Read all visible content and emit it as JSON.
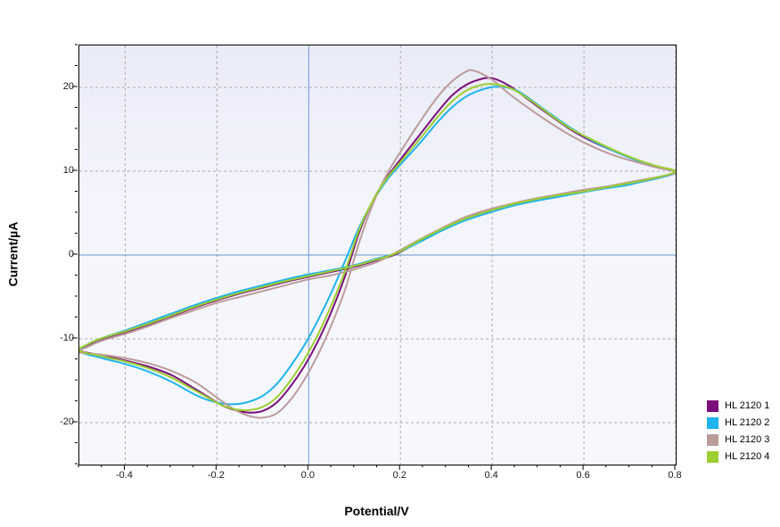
{
  "axes": {
    "x_label": "Potential/V",
    "y_label": "Current/µA"
  },
  "legend": {
    "items": [
      {
        "label": "HL 2120 1",
        "color": "#7b0f7b"
      },
      {
        "label": "HL 2120 2",
        "color": "#1fb4ee"
      },
      {
        "label": "HL 2120 3",
        "color": "#bc9b9b"
      },
      {
        "label": "HL 2120 4",
        "color": "#9cce30"
      }
    ]
  },
  "chart_data": {
    "type": "line",
    "subtype": "cyclic-voltammogram",
    "title": "",
    "xlabel": "Potential/V",
    "ylabel": "Current/µA",
    "xlim": [
      -0.5,
      0.8
    ],
    "ylim": [
      -25,
      25
    ],
    "x_ticks": [
      {
        "v": -0.4,
        "label": "-0.4"
      },
      {
        "v": -0.2,
        "label": "-0.2"
      },
      {
        "v": 0.0,
        "label": "0.0"
      },
      {
        "v": 0.2,
        "label": "0.2"
      },
      {
        "v": 0.4,
        "label": "0.4"
      },
      {
        "v": 0.6,
        "label": "0.6"
      },
      {
        "v": 0.8,
        "label": "0.8"
      }
    ],
    "x_minor_step": 0.05,
    "y_ticks": [
      {
        "v": -20,
        "label": "-20"
      },
      {
        "v": -10,
        "label": "-10"
      },
      {
        "v": 0,
        "label": "0"
      },
      {
        "v": 10,
        "label": "10"
      },
      {
        "v": 20,
        "label": "20"
      }
    ],
    "y_minor_step": 2.5,
    "grid_color": "#ababab",
    "zero_line_color": "#6b97d6",
    "legend_position": "right-bottom",
    "series": [
      {
        "name": "HL 2120 1",
        "color": "#7b0f7b",
        "anodic_peak": {
          "x": 0.39,
          "y": 21.1
        },
        "cathodic_peak": {
          "x": -0.13,
          "y": -18.8
        },
        "points": [
          [
            -0.5,
            -11.4
          ],
          [
            -0.45,
            -12.0
          ],
          [
            -0.4,
            -12.6
          ],
          [
            -0.35,
            -13.3
          ],
          [
            -0.3,
            -14.3
          ],
          [
            -0.25,
            -15.9
          ],
          [
            -0.22,
            -16.9
          ],
          [
            -0.19,
            -17.9
          ],
          [
            -0.16,
            -18.5
          ],
          [
            -0.13,
            -18.8
          ],
          [
            -0.1,
            -18.6
          ],
          [
            -0.07,
            -17.6
          ],
          [
            -0.04,
            -15.7
          ],
          [
            -0.01,
            -13.3
          ],
          [
            0.02,
            -10.3
          ],
          [
            0.05,
            -6.7
          ],
          [
            0.08,
            -2.4
          ],
          [
            0.11,
            2.7
          ],
          [
            0.14,
            6.5
          ],
          [
            0.17,
            9.2
          ],
          [
            0.2,
            11.4
          ],
          [
            0.24,
            14.2
          ],
          [
            0.28,
            17.0
          ],
          [
            0.31,
            18.9
          ],
          [
            0.34,
            20.2
          ],
          [
            0.37,
            20.9
          ],
          [
            0.4,
            21.1
          ],
          [
            0.44,
            20.1
          ],
          [
            0.48,
            18.5
          ],
          [
            0.52,
            16.9
          ],
          [
            0.57,
            15.0
          ],
          [
            0.62,
            13.5
          ],
          [
            0.67,
            12.3
          ],
          [
            0.72,
            11.2
          ],
          [
            0.76,
            10.5
          ],
          [
            0.8,
            9.9
          ],
          [
            0.77,
            9.3
          ],
          [
            0.73,
            8.8
          ],
          [
            0.69,
            8.4
          ],
          [
            0.64,
            7.9
          ],
          [
            0.59,
            7.5
          ],
          [
            0.54,
            7.0
          ],
          [
            0.49,
            6.5
          ],
          [
            0.44,
            5.9
          ],
          [
            0.39,
            5.2
          ],
          [
            0.34,
            4.3
          ],
          [
            0.29,
            3.0
          ],
          [
            0.24,
            1.6
          ],
          [
            0.19,
            0.1
          ],
          [
            0.15,
            -0.6
          ],
          [
            0.1,
            -1.4
          ],
          [
            0.05,
            -2.0
          ],
          [
            0.0,
            -2.6
          ],
          [
            -0.05,
            -3.2
          ],
          [
            -0.1,
            -3.9
          ],
          [
            -0.15,
            -4.6
          ],
          [
            -0.2,
            -5.4
          ],
          [
            -0.25,
            -6.3
          ],
          [
            -0.3,
            -7.3
          ],
          [
            -0.35,
            -8.3
          ],
          [
            -0.4,
            -9.2
          ],
          [
            -0.45,
            -10.0
          ],
          [
            -0.48,
            -10.7
          ]
        ]
      },
      {
        "name": "HL 2120 2",
        "color": "#1fb4ee",
        "anodic_peak": {
          "x": 0.41,
          "y": 20.1
        },
        "cathodic_peak": {
          "x": -0.17,
          "y": -17.8
        },
        "points": [
          [
            -0.5,
            -11.5
          ],
          [
            -0.45,
            -12.3
          ],
          [
            -0.4,
            -13.0
          ],
          [
            -0.35,
            -13.9
          ],
          [
            -0.3,
            -15.1
          ],
          [
            -0.25,
            -16.6
          ],
          [
            -0.22,
            -17.3
          ],
          [
            -0.19,
            -17.7
          ],
          [
            -0.16,
            -17.8
          ],
          [
            -0.13,
            -17.5
          ],
          [
            -0.1,
            -16.8
          ],
          [
            -0.07,
            -15.4
          ],
          [
            -0.04,
            -13.3
          ],
          [
            -0.01,
            -10.8
          ],
          [
            0.02,
            -7.8
          ],
          [
            0.05,
            -4.4
          ],
          [
            0.08,
            -0.6
          ],
          [
            0.11,
            3.3
          ],
          [
            0.14,
            6.4
          ],
          [
            0.17,
            8.9
          ],
          [
            0.2,
            10.8
          ],
          [
            0.24,
            13.2
          ],
          [
            0.28,
            15.8
          ],
          [
            0.31,
            17.5
          ],
          [
            0.34,
            18.8
          ],
          [
            0.37,
            19.6
          ],
          [
            0.41,
            20.1
          ],
          [
            0.45,
            19.7
          ],
          [
            0.48,
            18.7
          ],
          [
            0.52,
            17.1
          ],
          [
            0.57,
            15.2
          ],
          [
            0.62,
            13.6
          ],
          [
            0.67,
            12.3
          ],
          [
            0.72,
            11.2
          ],
          [
            0.76,
            10.5
          ],
          [
            0.8,
            9.9
          ],
          [
            0.77,
            9.3
          ],
          [
            0.73,
            8.8
          ],
          [
            0.69,
            8.3
          ],
          [
            0.64,
            7.9
          ],
          [
            0.59,
            7.4
          ],
          [
            0.54,
            6.9
          ],
          [
            0.49,
            6.4
          ],
          [
            0.44,
            5.8
          ],
          [
            0.39,
            5.0
          ],
          [
            0.34,
            4.1
          ],
          [
            0.29,
            2.9
          ],
          [
            0.24,
            1.5
          ],
          [
            0.19,
            0.2
          ],
          [
            0.15,
            -0.4
          ],
          [
            0.1,
            -1.2
          ],
          [
            0.05,
            -1.8
          ],
          [
            0.0,
            -2.3
          ],
          [
            -0.05,
            -2.9
          ],
          [
            -0.1,
            -3.6
          ],
          [
            -0.15,
            -4.3
          ],
          [
            -0.2,
            -5.1
          ],
          [
            -0.25,
            -6.0
          ],
          [
            -0.3,
            -7.0
          ],
          [
            -0.35,
            -8.0
          ],
          [
            -0.4,
            -9.0
          ],
          [
            -0.45,
            -9.9
          ],
          [
            -0.48,
            -10.6
          ]
        ]
      },
      {
        "name": "HL 2120 3",
        "color": "#bc9b9b",
        "anodic_peak": {
          "x": 0.36,
          "y": 22.0
        },
        "cathodic_peak": {
          "x": -0.1,
          "y": -19.4
        },
        "points": [
          [
            -0.5,
            -11.6
          ],
          [
            -0.45,
            -11.9
          ],
          [
            -0.4,
            -12.3
          ],
          [
            -0.35,
            -12.9
          ],
          [
            -0.3,
            -13.8
          ],
          [
            -0.25,
            -15.1
          ],
          [
            -0.22,
            -16.2
          ],
          [
            -0.19,
            -17.4
          ],
          [
            -0.16,
            -18.5
          ],
          [
            -0.13,
            -19.2
          ],
          [
            -0.1,
            -19.4
          ],
          [
            -0.07,
            -18.9
          ],
          [
            -0.04,
            -17.3
          ],
          [
            -0.01,
            -14.9
          ],
          [
            0.02,
            -11.9
          ],
          [
            0.05,
            -8.3
          ],
          [
            0.08,
            -4.0
          ],
          [
            0.11,
            1.5
          ],
          [
            0.14,
            6.1
          ],
          [
            0.17,
            9.6
          ],
          [
            0.2,
            12.3
          ],
          [
            0.24,
            15.7
          ],
          [
            0.28,
            18.8
          ],
          [
            0.31,
            20.6
          ],
          [
            0.34,
            21.8
          ],
          [
            0.36,
            22.0
          ],
          [
            0.4,
            20.9
          ],
          [
            0.44,
            19.1
          ],
          [
            0.48,
            17.5
          ],
          [
            0.52,
            16.0
          ],
          [
            0.57,
            14.3
          ],
          [
            0.62,
            12.9
          ],
          [
            0.67,
            11.8
          ],
          [
            0.72,
            11.0
          ],
          [
            0.76,
            10.4
          ],
          [
            0.8,
            9.9
          ],
          [
            0.77,
            9.4
          ],
          [
            0.73,
            9.0
          ],
          [
            0.69,
            8.6
          ],
          [
            0.64,
            8.1
          ],
          [
            0.59,
            7.7
          ],
          [
            0.54,
            7.2
          ],
          [
            0.49,
            6.7
          ],
          [
            0.44,
            6.1
          ],
          [
            0.39,
            5.4
          ],
          [
            0.34,
            4.5
          ],
          [
            0.29,
            3.2
          ],
          [
            0.24,
            1.8
          ],
          [
            0.19,
            0.3
          ],
          [
            0.15,
            -0.8
          ],
          [
            0.1,
            -1.7
          ],
          [
            0.05,
            -2.4
          ],
          [
            0.0,
            -2.9
          ],
          [
            -0.05,
            -3.6
          ],
          [
            -0.1,
            -4.3
          ],
          [
            -0.15,
            -5.0
          ],
          [
            -0.2,
            -5.7
          ],
          [
            -0.25,
            -6.6
          ],
          [
            -0.3,
            -7.5
          ],
          [
            -0.35,
            -8.5
          ],
          [
            -0.4,
            -9.4
          ],
          [
            -0.45,
            -10.2
          ],
          [
            -0.48,
            -10.9
          ]
        ]
      },
      {
        "name": "HL 2120 4",
        "color": "#9cce30",
        "anodic_peak": {
          "x": 0.39,
          "y": 20.4
        },
        "cathodic_peak": {
          "x": -0.15,
          "y": -18.5
        },
        "points": [
          [
            -0.5,
            -11.4
          ],
          [
            -0.45,
            -12.1
          ],
          [
            -0.4,
            -12.7
          ],
          [
            -0.35,
            -13.5
          ],
          [
            -0.3,
            -14.6
          ],
          [
            -0.25,
            -16.1
          ],
          [
            -0.22,
            -17.0
          ],
          [
            -0.19,
            -17.9
          ],
          [
            -0.16,
            -18.4
          ],
          [
            -0.13,
            -18.5
          ],
          [
            -0.1,
            -18.1
          ],
          [
            -0.07,
            -17.0
          ],
          [
            -0.04,
            -15.0
          ],
          [
            -0.01,
            -12.5
          ],
          [
            0.02,
            -9.5
          ],
          [
            0.05,
            -5.9
          ],
          [
            0.08,
            -1.8
          ],
          [
            0.11,
            3.0
          ],
          [
            0.14,
            6.5
          ],
          [
            0.17,
            9.1
          ],
          [
            0.2,
            11.1
          ],
          [
            0.24,
            13.7
          ],
          [
            0.28,
            16.4
          ],
          [
            0.31,
            18.2
          ],
          [
            0.34,
            19.5
          ],
          [
            0.37,
            20.2
          ],
          [
            0.4,
            20.4
          ],
          [
            0.44,
            19.9
          ],
          [
            0.48,
            18.6
          ],
          [
            0.52,
            17.0
          ],
          [
            0.57,
            15.1
          ],
          [
            0.62,
            13.7
          ],
          [
            0.67,
            12.4
          ],
          [
            0.72,
            11.3
          ],
          [
            0.76,
            10.6
          ],
          [
            0.8,
            10.0
          ],
          [
            0.77,
            9.4
          ],
          [
            0.73,
            8.9
          ],
          [
            0.69,
            8.5
          ],
          [
            0.64,
            8.0
          ],
          [
            0.59,
            7.5
          ],
          [
            0.54,
            7.1
          ],
          [
            0.49,
            6.6
          ],
          [
            0.44,
            6.0
          ],
          [
            0.39,
            5.2
          ],
          [
            0.34,
            4.3
          ],
          [
            0.29,
            3.1
          ],
          [
            0.24,
            1.7
          ],
          [
            0.19,
            0.2
          ],
          [
            0.15,
            -0.5
          ],
          [
            0.1,
            -1.3
          ],
          [
            0.05,
            -1.9
          ],
          [
            0.0,
            -2.5
          ],
          [
            -0.05,
            -3.1
          ],
          [
            -0.1,
            -3.8
          ],
          [
            -0.15,
            -4.5
          ],
          [
            -0.2,
            -5.3
          ],
          [
            -0.25,
            -6.2
          ],
          [
            -0.3,
            -7.2
          ],
          [
            -0.35,
            -8.2
          ],
          [
            -0.4,
            -9.1
          ],
          [
            -0.45,
            -9.9
          ],
          [
            -0.48,
            -10.6
          ]
        ]
      }
    ]
  }
}
